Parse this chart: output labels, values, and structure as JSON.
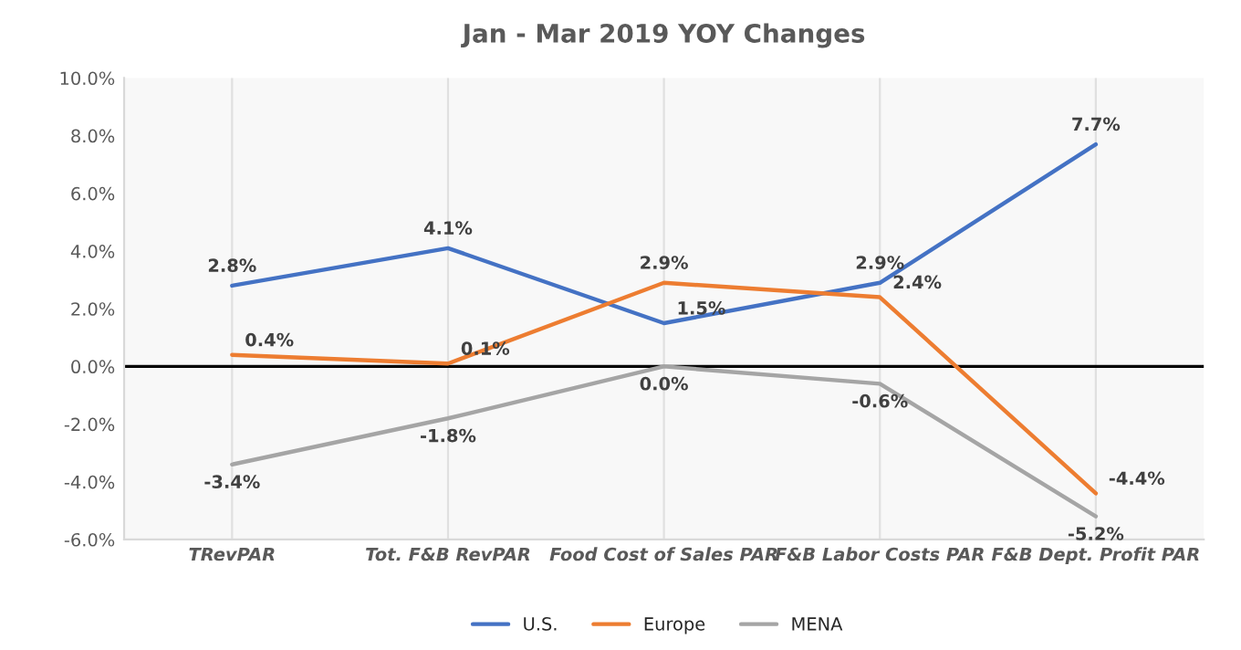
{
  "chart_data": {
    "type": "line",
    "title": "Jan - Mar 2019 YOY Changes",
    "categories": [
      "TRevPAR",
      "Tot. F&B RevPAR",
      "Food Cost of Sales PAR",
      "F&B Labor Costs PAR",
      "F&B Dept. Profit PAR"
    ],
    "series": [
      {
        "name": "U.S.",
        "color": "#4472c4",
        "values": [
          2.8,
          4.1,
          1.5,
          2.9,
          7.7
        ],
        "value_labels": [
          "2.8%",
          "4.1%",
          "1.5%",
          "2.9%",
          "7.7%"
        ]
      },
      {
        "name": "Europe",
        "color": "#ed7d31",
        "values": [
          0.4,
          0.1,
          2.9,
          2.4,
          -4.4
        ],
        "value_labels": [
          "0.4%",
          "0.1%",
          "2.9%",
          "2.4%",
          "-4.4%"
        ]
      },
      {
        "name": "MENA",
        "color": "#a5a5a5",
        "values": [
          -3.4,
          -1.8,
          0.0,
          -0.6,
          -5.2
        ],
        "value_labels": [
          "-3.4%",
          "-1.8%",
          "0.0%",
          "-0.6%",
          "-5.2%"
        ]
      }
    ],
    "ylim": [
      -6,
      10
    ],
    "yticks": [
      {
        "value": -6,
        "label": "-6.0%"
      },
      {
        "value": -4,
        "label": "-4.0%"
      },
      {
        "value": -2,
        "label": "-2.0%"
      },
      {
        "value": 0,
        "label": "0.0%"
      },
      {
        "value": 2,
        "label": "2.0%"
      },
      {
        "value": 4,
        "label": "4.0%"
      },
      {
        "value": 6,
        "label": "6.0%"
      },
      {
        "value": 8,
        "label": "8.0%"
      },
      {
        "value": 10,
        "label": "10.0%"
      }
    ],
    "ref_lines": [
      {
        "axis": "y",
        "value": 0,
        "color": "#000000"
      }
    ],
    "grid": "x",
    "legend": "bottom",
    "marker": "none",
    "line_style": "solid"
  }
}
